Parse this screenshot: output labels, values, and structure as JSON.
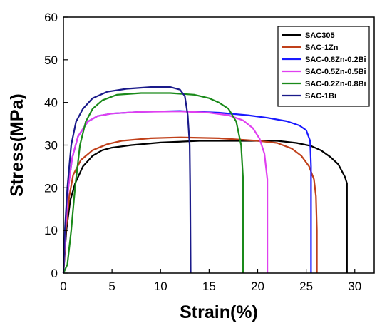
{
  "chart_data": {
    "type": "line",
    "xlabel": "Strain(%)",
    "ylabel": "Stress(MPa)",
    "xlim": [
      0,
      32
    ],
    "ylim": [
      0,
      60
    ],
    "xticks": [
      0,
      5,
      10,
      15,
      20,
      25,
      30
    ],
    "yticks": [
      0,
      10,
      20,
      30,
      40,
      50,
      60
    ],
    "legend_position": "top-right",
    "grid": false,
    "series": [
      {
        "name": "SAC305",
        "color": "#000000",
        "points": [
          [
            0,
            0
          ],
          [
            0.3,
            10
          ],
          [
            0.7,
            17
          ],
          [
            1.2,
            21
          ],
          [
            2,
            25
          ],
          [
            3,
            27.5
          ],
          [
            4,
            28.8
          ],
          [
            5,
            29.4
          ],
          [
            7,
            30
          ],
          [
            10,
            30.6
          ],
          [
            14,
            31
          ],
          [
            18,
            31
          ],
          [
            22,
            31
          ],
          [
            24,
            30.5
          ],
          [
            25.5,
            29.8
          ],
          [
            26.5,
            28.8
          ],
          [
            27.5,
            27.2
          ],
          [
            28.3,
            25.5
          ],
          [
            29,
            22.5
          ],
          [
            29.2,
            21
          ],
          [
            29.2,
            0
          ]
        ]
      },
      {
        "name": "SAC-1Zn",
        "color": "#c0401a",
        "points": [
          [
            0,
            0
          ],
          [
            0.25,
            10
          ],
          [
            0.6,
            18
          ],
          [
            1,
            23
          ],
          [
            1.8,
            26.5
          ],
          [
            3,
            28.8
          ],
          [
            4.5,
            30.2
          ],
          [
            6,
            31
          ],
          [
            9,
            31.6
          ],
          [
            12,
            31.8
          ],
          [
            16,
            31.6
          ],
          [
            20,
            31
          ],
          [
            22,
            30.5
          ],
          [
            23.5,
            29.2
          ],
          [
            24.5,
            27.5
          ],
          [
            25.3,
            25
          ],
          [
            25.8,
            22
          ],
          [
            26,
            18
          ],
          [
            26.1,
            10
          ],
          [
            26.1,
            0
          ]
        ]
      },
      {
        "name": "SAC-0.8Zn-0.2Bi",
        "color": "#1a1aff",
        "points": [
          [
            0,
            0
          ],
          [
            0.2,
            10
          ],
          [
            0.5,
            20
          ],
          [
            0.9,
            27
          ],
          [
            1.5,
            32
          ],
          [
            2.5,
            35.5
          ],
          [
            3.5,
            36.8
          ],
          [
            5,
            37.4
          ],
          [
            8,
            37.8
          ],
          [
            12,
            38
          ],
          [
            16,
            37.6
          ],
          [
            19,
            37
          ],
          [
            21,
            36.4
          ],
          [
            23,
            35.6
          ],
          [
            24.3,
            34.6
          ],
          [
            25,
            33.5
          ],
          [
            25.4,
            31
          ],
          [
            25.5,
            25
          ],
          [
            25.5,
            0
          ]
        ]
      },
      {
        "name": "SAC-0.5Zn-0.5Bi",
        "color": "#e040f0",
        "points": [
          [
            0,
            0
          ],
          [
            0.2,
            10
          ],
          [
            0.5,
            20
          ],
          [
            0.9,
            27
          ],
          [
            1.5,
            32
          ],
          [
            2.5,
            35.5
          ],
          [
            3.5,
            36.8
          ],
          [
            5,
            37.4
          ],
          [
            8,
            37.8
          ],
          [
            12,
            37.9
          ],
          [
            15,
            37.6
          ],
          [
            17,
            37
          ],
          [
            18.5,
            35.8
          ],
          [
            19.5,
            34
          ],
          [
            20.2,
            31.5
          ],
          [
            20.7,
            28
          ],
          [
            21,
            22
          ],
          [
            21,
            0
          ]
        ]
      },
      {
        "name": "SAC-0.2Zn-0.8Bi",
        "color": "#1a8a1a",
        "points": [
          [
            0,
            0
          ],
          [
            0.4,
            2
          ],
          [
            0.8,
            10
          ],
          [
            1.2,
            20
          ],
          [
            1.7,
            30
          ],
          [
            2.3,
            35.5
          ],
          [
            3,
            38.5
          ],
          [
            4,
            40.5
          ],
          [
            5.5,
            41.8
          ],
          [
            8,
            42.2
          ],
          [
            11,
            42.2
          ],
          [
            13.5,
            41.8
          ],
          [
            15,
            41
          ],
          [
            16,
            40
          ],
          [
            17,
            38.5
          ],
          [
            17.8,
            35.5
          ],
          [
            18.3,
            30
          ],
          [
            18.5,
            22
          ],
          [
            18.5,
            0
          ]
        ]
      },
      {
        "name": "SAC-1Bi",
        "color": "#1a1a8a",
        "points": [
          [
            0,
            0
          ],
          [
            0.15,
            10
          ],
          [
            0.4,
            20
          ],
          [
            0.8,
            30
          ],
          [
            1.3,
            35.5
          ],
          [
            2,
            38.5
          ],
          [
            3,
            41
          ],
          [
            4.5,
            42.5
          ],
          [
            6.5,
            43.2
          ],
          [
            9,
            43.6
          ],
          [
            11,
            43.6
          ],
          [
            12,
            43
          ],
          [
            12.5,
            41.5
          ],
          [
            12.8,
            37
          ],
          [
            13,
            30
          ],
          [
            13.05,
            20
          ],
          [
            13.1,
            0
          ]
        ]
      }
    ]
  }
}
